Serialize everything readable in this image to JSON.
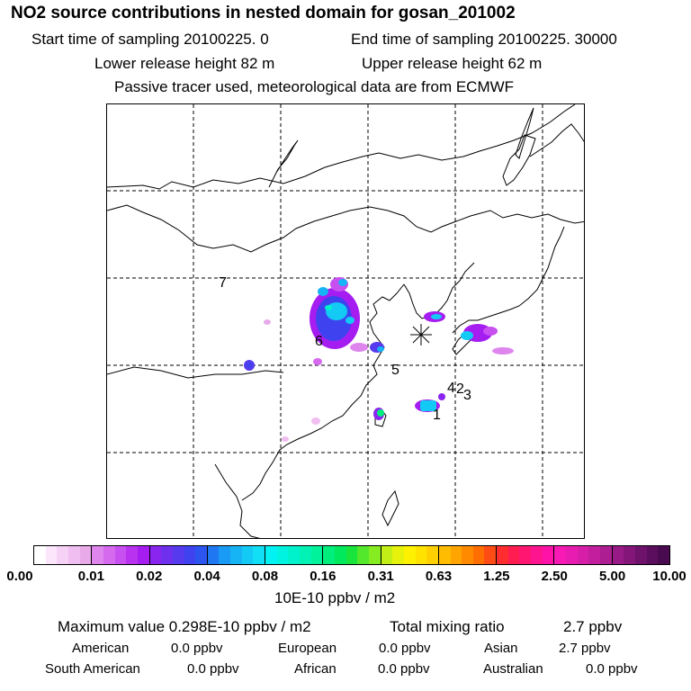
{
  "header": {
    "title": "NO2 source contributions in nested domain for gosan_201002",
    "start_time": "Start time of sampling 20100225.     0",
    "end_time": "End time of sampling 20100225. 30000",
    "lower_height": "Lower release height   82 m",
    "upper_height": "Upper release height   62 m",
    "tracer_note": "Passive tracer used, meteorological data are from ECMWF"
  },
  "map": {
    "receptor_symbol": "*",
    "source_labels": [
      "1",
      "2",
      "3",
      "4",
      "5",
      "6",
      "7"
    ],
    "gridline_style": "dashed"
  },
  "colorbar": {
    "tick_labels": [
      "0.00",
      "0.01",
      "0.02",
      "0.04",
      "0.08",
      "0.16",
      "0.31",
      "0.63",
      "1.25",
      "2.50",
      "5.00",
      "10.00"
    ],
    "segments": [
      [
        "#ffffff",
        "#fbe6fb",
        "#f6d2f6",
        "#f0bef0",
        "#e9aaea"
      ],
      [
        "#de86ee",
        "#d56aef",
        "#c84ff0",
        "#b832f0",
        "#a51df1"
      ],
      [
        "#8a24ef",
        "#6f30ee",
        "#553aee",
        "#3e43ef",
        "#2c55f0"
      ],
      [
        "#1f78f2",
        "#199af4",
        "#16b4f5",
        "#13caf5",
        "#10dff5"
      ],
      [
        "#00f2f2",
        "#00f2e0",
        "#00f2cc",
        "#00f2b4",
        "#00f29a"
      ],
      [
        "#00ee7c",
        "#00e85c",
        "#18e43c",
        "#54e82c",
        "#86ec22"
      ],
      [
        "#c2f016",
        "#e6f20c",
        "#fff200",
        "#ffe200",
        "#ffd000"
      ],
      [
        "#ffbc00",
        "#ffa400",
        "#ff8a00",
        "#ff6e00",
        "#ff4c14"
      ],
      [
        "#ff2c30",
        "#ff1c50",
        "#ff1670",
        "#ff1490",
        "#ff12a8"
      ],
      [
        "#f81ab4",
        "#e81cb0",
        "#d61ea8",
        "#c21e9e",
        "#ac1e92"
      ],
      [
        "#981a86",
        "#84167a",
        "#6f126c",
        "#5c0e5e",
        "#4a0a50"
      ]
    ],
    "unit": "10E-10 ppbv / m2"
  },
  "stats": {
    "max_label": "Maximum value  0.298E-10 ppbv / m2",
    "total_label": "Total mixing ratio",
    "total_value": "2.7 ppbv",
    "regions": [
      {
        "name": "American",
        "value": "0.0 ppbv"
      },
      {
        "name": "European",
        "value": "0.0 ppbv"
      },
      {
        "name": "Asian",
        "value": "2.7 ppbv"
      },
      {
        "name": "South American",
        "value": "0.0 ppbv"
      },
      {
        "name": "African",
        "value": "0.0 ppbv"
      },
      {
        "name": "Australian",
        "value": "0.0 ppbv"
      }
    ]
  }
}
